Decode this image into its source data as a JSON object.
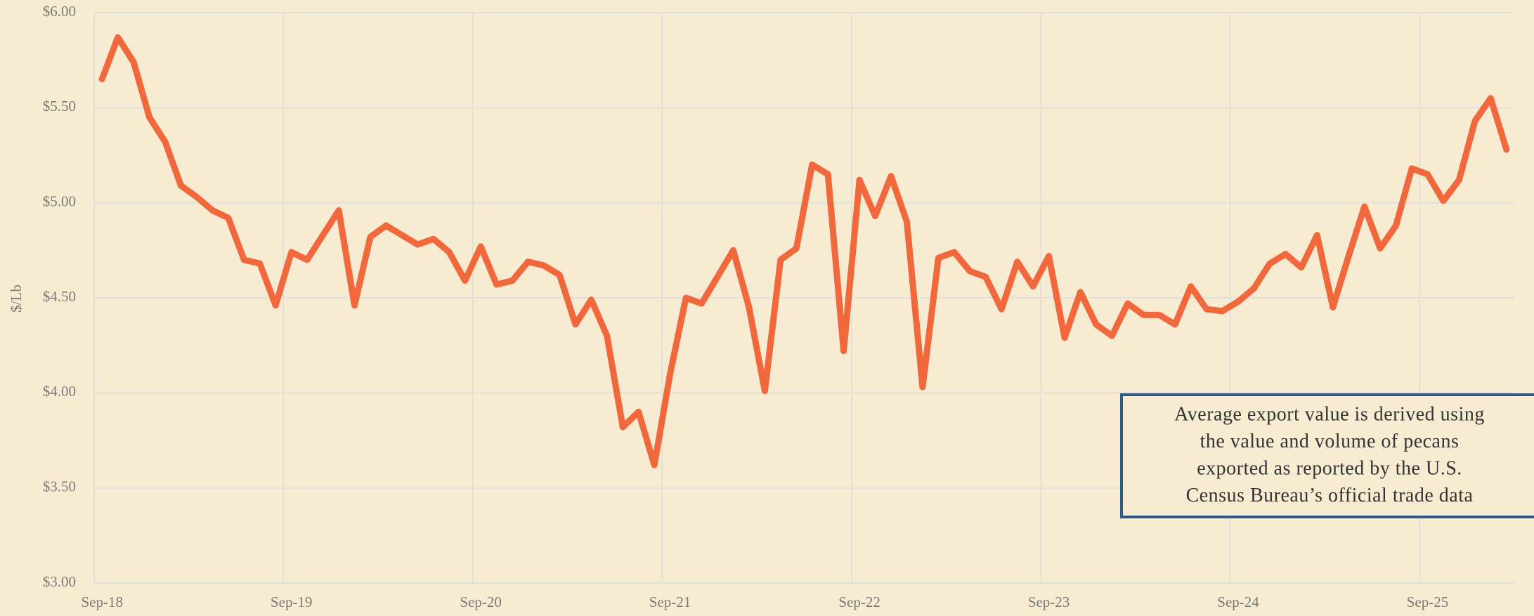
{
  "chart_data": {
    "type": "line",
    "y_label": "$/Lb",
    "annotation": [
      "Average export value is derived using",
      "the value and volume of pecans",
      "exported as reported by the U.S.",
      "Census Bureau’s official trade data"
    ],
    "categories": [
      "Sep-18",
      null,
      null,
      null,
      null,
      null,
      null,
      null,
      null,
      null,
      null,
      null,
      "Sep-19",
      null,
      null,
      null,
      null,
      null,
      null,
      null,
      null,
      null,
      null,
      null,
      "Sep-20",
      null,
      null,
      null,
      null,
      null,
      null,
      null,
      null,
      null,
      null,
      null,
      "Sep-21",
      null,
      null,
      null,
      null,
      null,
      null,
      null,
      null,
      null,
      null,
      null,
      "Sep-22",
      null,
      null,
      null,
      null,
      null,
      null,
      null,
      null,
      null,
      null,
      null,
      "Sep-23",
      null,
      null,
      null,
      null,
      null,
      null,
      null,
      null,
      null,
      null,
      null,
      "Sep-24",
      null,
      null,
      null,
      null,
      null,
      null,
      null,
      null,
      null,
      null,
      null,
      "Sep-25",
      null,
      null,
      null,
      null,
      null
    ],
    "series": [
      {
        "name": "Average export value",
        "color": "#f0683c",
        "values": [
          5.65,
          5.87,
          5.74,
          5.45,
          5.32,
          5.09,
          5.03,
          4.96,
          4.92,
          4.7,
          4.68,
          4.46,
          4.74,
          4.7,
          4.83,
          4.96,
          4.46,
          4.82,
          4.88,
          4.83,
          4.78,
          4.81,
          4.74,
          4.59,
          4.77,
          4.57,
          4.59,
          4.69,
          4.67,
          4.62,
          4.36,
          4.49,
          4.3,
          3.82,
          3.9,
          3.62,
          4.1,
          4.5,
          4.47,
          4.61,
          4.75,
          4.45,
          4.01,
          4.7,
          4.76,
          5.2,
          5.15,
          4.22,
          5.12,
          4.93,
          5.14,
          4.9,
          4.03,
          4.71,
          4.74,
          4.64,
          4.61,
          4.44,
          4.69,
          4.56,
          4.72,
          4.29,
          4.53,
          4.36,
          4.3,
          4.47,
          4.41,
          4.41,
          4.36,
          4.56,
          4.44,
          4.43,
          4.48,
          4.55,
          4.68,
          4.73,
          4.66,
          4.83,
          4.45,
          4.72,
          4.98,
          4.76,
          4.88,
          5.18,
          5.15,
          5.01,
          5.12,
          5.43,
          5.55,
          5.28
        ]
      }
    ],
    "ylim": [
      3.0,
      6.0
    ],
    "yticks": [
      {
        "value": 3.0,
        "label": "$3.00"
      },
      {
        "value": 3.5,
        "label": "$3.50"
      },
      {
        "value": 4.0,
        "label": "$4.00"
      },
      {
        "value": 4.5,
        "label": "$4.50"
      },
      {
        "value": 5.0,
        "label": "$5.00"
      },
      {
        "value": 5.5,
        "label": "$5.50"
      },
      {
        "value": 6.0,
        "label": "$6.00"
      }
    ],
    "grid": true
  }
}
